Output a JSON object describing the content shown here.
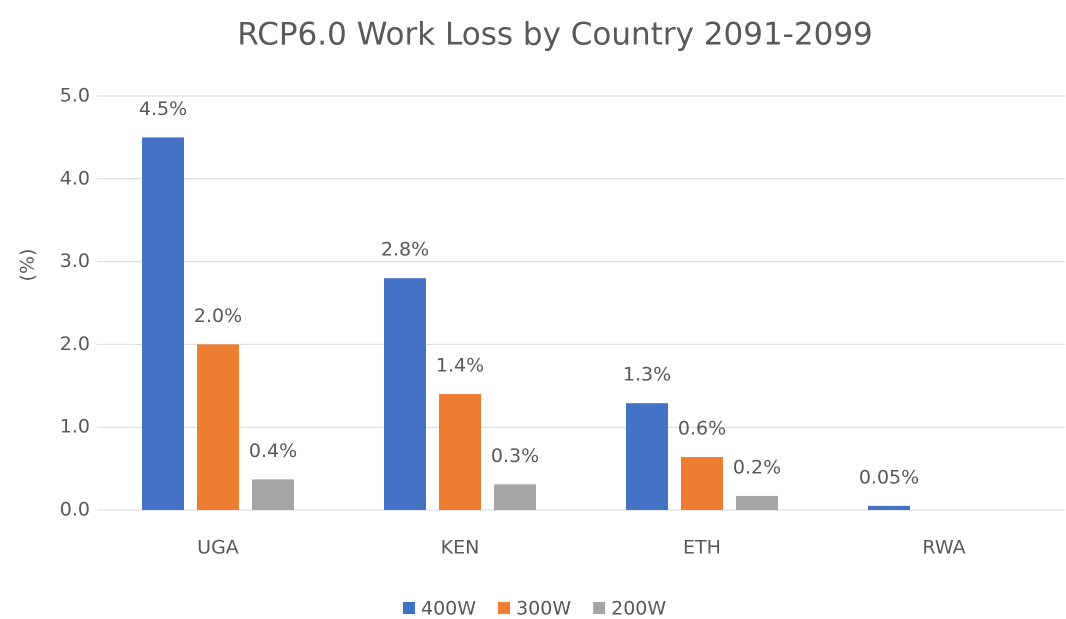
{
  "chart_data": {
    "type": "bar",
    "title": "RCP6.0 Work Loss by Country 2091-2099",
    "ylabel": "(%)",
    "categories": [
      "UGA",
      "KEN",
      "ETH",
      "RWA"
    ],
    "series": [
      {
        "name": "400W",
        "color": "#4472c4",
        "values": [
          4.5,
          2.8,
          1.29,
          0.05
        ],
        "value_labels": [
          "4.5%",
          "2.8%",
          "1.3%",
          "0.05%"
        ]
      },
      {
        "name": "300W",
        "color": "#ed7d31",
        "values": [
          2.0,
          1.4,
          0.64,
          null
        ],
        "value_labels": [
          "2.0%",
          "1.4%",
          "0.6%",
          null
        ]
      },
      {
        "name": "200W",
        "color": "#a5a5a5",
        "values": [
          0.37,
          0.31,
          0.17,
          null
        ],
        "value_labels": [
          "0.4%",
          "0.3%",
          "0.2%",
          null
        ]
      }
    ],
    "ylim": [
      0,
      5
    ],
    "yticks": [
      {
        "value": 0,
        "label": "0.0"
      },
      {
        "value": 1,
        "label": "1.0"
      },
      {
        "value": 2,
        "label": "2.0"
      },
      {
        "value": 3,
        "label": "3.0"
      },
      {
        "value": 4,
        "label": "4.0"
      },
      {
        "value": 5,
        "label": "5.0"
      }
    ],
    "grid": true,
    "legend": "bottom"
  }
}
